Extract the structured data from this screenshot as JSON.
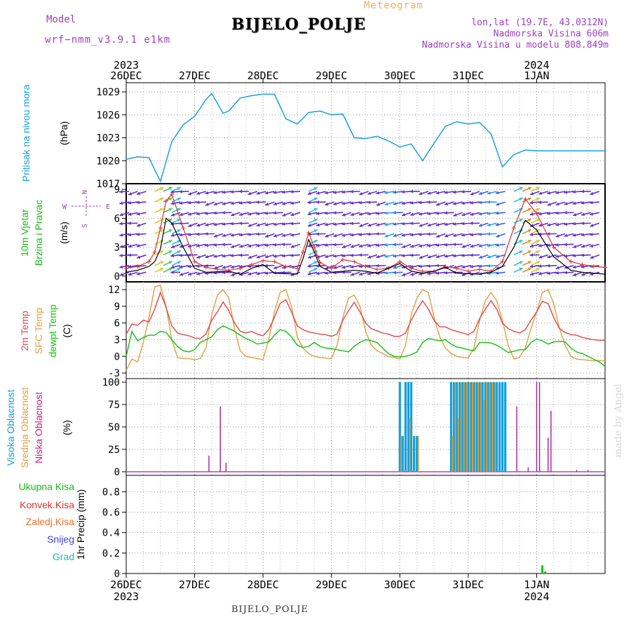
{
  "header": {
    "model_label": "Model",
    "model_name": "wrf−nmm_v3.9.1  e1km",
    "meteogram_label": "Meteogram",
    "station_title": "BIJELO_POLJE",
    "coords": "lon,lat (19.7E, 43.0312N)",
    "elevation": "Nadmorska Visina 606m",
    "model_elevation": "Nadmorska Visina u modelu 808.849m",
    "watermark": "made by Angel",
    "footer_station": "BIJELO_POLJE"
  },
  "colors": {
    "pressure": "#1aa0e0",
    "wind_speed": "#000000",
    "gust": "#e03030",
    "t2m": "#e04848",
    "sfc": "#e0a040",
    "dew": "#10c010",
    "high_cloud": "#10a0e0",
    "mid_cloud": "#e0a040",
    "low_cloud": "#a020a0",
    "total_precip": "#10c010",
    "label_purple": "#a040c0",
    "label_orange": "#f0b060"
  },
  "chart_data": [
    {
      "type": "line",
      "name": "pressure",
      "ylabel_name": "Pritisak na nivou mora",
      "ylabel_unit": "(hPa)",
      "yticks": [
        1017,
        1020,
        1023,
        1026,
        1029
      ],
      "ylim": [
        1017,
        1030.2
      ],
      "x_hours": [
        0,
        4,
        8,
        12,
        16,
        20,
        24,
        28,
        30,
        34,
        36,
        40,
        44,
        48,
        52,
        56,
        60,
        64,
        68,
        72,
        76,
        80,
        84,
        88,
        92,
        96,
        100,
        104,
        108,
        112,
        116,
        120,
        124,
        128,
        132,
        136,
        140,
        144,
        148,
        152,
        156,
        160,
        164,
        168
      ],
      "values": [
        1020.2,
        1020.5,
        1020.4,
        1017.3,
        1022.5,
        1024.7,
        1025.8,
        1028.0,
        1028.8,
        1026.2,
        1026.5,
        1028.2,
        1028.5,
        1028.7,
        1028.7,
        1025.5,
        1024.8,
        1026.3,
        1026.5,
        1026.0,
        1026.1,
        1023.0,
        1022.9,
        1023.2,
        1022.6,
        1021.8,
        1022.2,
        1020.0,
        1022.3,
        1024.5,
        1025.1,
        1024.8,
        1025.0,
        1023.5,
        1019.2,
        1020.8,
        1021.4,
        1021.3,
        1021.3,
        1021.3,
        1021.3,
        1021.3,
        1021.3,
        1021.3
      ]
    },
    {
      "type": "line",
      "name": "wind",
      "ylabel_name": "10m Vjetar",
      "ylabel_name2": "Brzina i Pravac",
      "ylabel_unit": "(m/s)",
      "compass": [
        "N",
        "S",
        "W",
        "E"
      ],
      "yticks": [
        0,
        3,
        6,
        9
      ],
      "ylim": [
        -0.6,
        9.6
      ],
      "speed_x_hours": [
        0,
        4,
        8,
        10,
        12,
        14,
        16,
        20,
        24,
        28,
        36,
        40,
        44,
        48,
        52,
        60,
        62,
        64,
        66,
        68,
        72,
        80,
        84,
        88,
        92,
        96,
        100,
        104,
        108,
        112,
        116,
        124,
        128,
        132,
        136,
        140,
        144,
        150,
        156,
        160,
        164,
        168
      ],
      "speed_values": [
        0.4,
        0.6,
        1.0,
        1.5,
        2.8,
        6.0,
        5.5,
        3.0,
        0.8,
        0.4,
        0.5,
        0.2,
        0.8,
        1.2,
        0.3,
        0.2,
        1.8,
        3.8,
        2.5,
        1.0,
        0.4,
        0.6,
        0.5,
        0.3,
        0.8,
        1.3,
        0.5,
        0.3,
        0.5,
        0.9,
        0.3,
        0.2,
        0.4,
        1.0,
        3.0,
        5.8,
        4.8,
        2.0,
        0.6,
        0.4,
        0.3,
        0.2
      ],
      "gust_x_hours": [
        0,
        4,
        8,
        10,
        12,
        14,
        16,
        20,
        24,
        28,
        32,
        36,
        40,
        44,
        48,
        52,
        56,
        60,
        62,
        64,
        66,
        68,
        72,
        76,
        80,
        84,
        88,
        92,
        96,
        100,
        104,
        108,
        112,
        116,
        120,
        124,
        128,
        132,
        136,
        140,
        144,
        150,
        156,
        160,
        164,
        168
      ],
      "gust_values": [
        0.8,
        1.0,
        1.5,
        2.5,
        5.0,
        7.8,
        8.5,
        5.0,
        1.5,
        0.9,
        0.7,
        0.6,
        0.8,
        1.2,
        1.6,
        1.5,
        1.0,
        0.8,
        2.5,
        4.5,
        3.0,
        1.4,
        0.8,
        1.7,
        1.5,
        1.0,
        0.7,
        0.8,
        1.5,
        0.8,
        0.5,
        0.5,
        1.0,
        0.8,
        0.5,
        0.7,
        0.5,
        1.5,
        5.0,
        8.0,
        6.5,
        3.0,
        1.5,
        1.2,
        1.0,
        0.9
      ],
      "arrow_rows": [
        0.4,
        1.1,
        2.2,
        3.3,
        4.4,
        5.5,
        6.6,
        7.7,
        8.8
      ],
      "arrow_step_hours": 3
    },
    {
      "type": "line",
      "name": "temperature",
      "ylabel_name": "2m Temp",
      "ylabel_name2": "SFC Temp",
      "ylabel_name3": "dewpt Temp",
      "ylabel_unit": "(C)",
      "yticks": [
        -3,
        0,
        3,
        6,
        9,
        12
      ],
      "ylim": [
        -4,
        13.4
      ],
      "x_hours": [
        0,
        2,
        4,
        6,
        8,
        10,
        12,
        14,
        16,
        18,
        20,
        22,
        24,
        26,
        28,
        30,
        32,
        34,
        36,
        38,
        40,
        42,
        44,
        46,
        48,
        50,
        52,
        54,
        56,
        58,
        60,
        62,
        64,
        66,
        68,
        70,
        72,
        74,
        76,
        78,
        80,
        82,
        84,
        86,
        88,
        90,
        92,
        94,
        96,
        98,
        100,
        102,
        104,
        106,
        108,
        110,
        112,
        114,
        116,
        118,
        120,
        122,
        124,
        126,
        128,
        130,
        132,
        134,
        136,
        138,
        140,
        142,
        144,
        146,
        148,
        150,
        152,
        154,
        156,
        158,
        160,
        162,
        164,
        166,
        168
      ],
      "t2m": [
        4.0,
        5.8,
        5.6,
        6.5,
        6.2,
        8.5,
        11.5,
        8.8,
        5.5,
        4.2,
        3.9,
        3.7,
        3.3,
        3.2,
        4.0,
        6.5,
        8.0,
        9.8,
        8.2,
        6.0,
        4.5,
        4.2,
        4.5,
        4.0,
        3.7,
        4.8,
        7.0,
        9.5,
        10.2,
        8.0,
        5.5,
        4.8,
        4.4,
        4.2,
        4.0,
        3.9,
        3.6,
        4.0,
        6.5,
        8.2,
        9.7,
        8.0,
        6.0,
        5.0,
        4.6,
        4.2,
        4.0,
        3.6,
        3.6,
        4.2,
        6.5,
        8.4,
        10.0,
        8.5,
        6.5,
        5.3,
        5.3,
        4.8,
        4.5,
        4.2,
        3.9,
        4.5,
        6.8,
        8.5,
        10.0,
        8.5,
        6.0,
        5.0,
        4.5,
        4.2,
        4.8,
        6.5,
        8.0,
        9.9,
        9.5,
        7.0,
        5.0,
        4.3,
        3.9,
        3.8,
        3.4,
        3.2,
        3.0,
        2.9,
        2.9
      ],
      "sfc": [
        -2.5,
        -0.5,
        -1.0,
        2.5,
        7.0,
        12.5,
        12.8,
        9.0,
        3.0,
        -0.2,
        -0.4,
        -0.4,
        -0.6,
        -0.4,
        1.5,
        7.5,
        11.0,
        12.0,
        10.5,
        5.0,
        1.0,
        0.0,
        -0.2,
        -0.4,
        -0.6,
        3.0,
        8.0,
        11.5,
        12.0,
        9.0,
        3.5,
        1.5,
        0.5,
        0.0,
        -0.2,
        -0.3,
        -0.4,
        2.0,
        7.0,
        10.5,
        11.0,
        9.0,
        4.5,
        2.0,
        1.0,
        0.5,
        0.0,
        -0.2,
        -0.5,
        2.0,
        7.5,
        10.5,
        12.0,
        11.5,
        7.0,
        3.5,
        1.5,
        0.5,
        0.0,
        -0.2,
        -0.3,
        1.5,
        6.5,
        10.0,
        11.5,
        10.0,
        6.5,
        2.0,
        -0.5,
        -0.2,
        1.5,
        5.0,
        8.0,
        11.5,
        12.0,
        9.5,
        5.0,
        2.0,
        0.0,
        -0.5,
        -0.6,
        -0.7,
        -0.8,
        -0.8,
        -0.8
      ],
      "dew": [
        0.0,
        4.5,
        2.8,
        3.4,
        3.8,
        3.8,
        4.5,
        4.3,
        3.0,
        1.8,
        1.0,
        0.8,
        1.2,
        2.5,
        3.0,
        3.5,
        4.8,
        5.5,
        5.0,
        4.5,
        3.8,
        3.2,
        2.8,
        2.2,
        2.4,
        2.6,
        3.8,
        4.8,
        4.5,
        3.5,
        2.0,
        1.6,
        1.8,
        2.5,
        1.8,
        1.5,
        1.4,
        1.2,
        1.0,
        0.8,
        1.8,
        2.5,
        3.0,
        2.8,
        2.5,
        1.5,
        0.5,
        0.0,
        -0.1,
        0.0,
        0.3,
        0.8,
        2.5,
        3.2,
        3.0,
        2.8,
        3.0,
        2.2,
        1.7,
        1.5,
        1.2,
        1.0,
        2.5,
        2.5,
        2.4,
        2.0,
        1.4,
        0.7,
        0.9,
        1.2,
        1.2,
        2.5,
        3.1,
        2.8,
        2.2,
        2.6,
        2.7,
        2.6,
        1.5,
        0.8,
        0.5,
        0.0,
        -0.5,
        -1.0,
        -1.8
      ]
    },
    {
      "type": "bar",
      "name": "cloud",
      "ylabel_name": "Visoka Oblacnost",
      "ylabel_name2": "Srednja Oblacnost",
      "ylabel_name3": "Niska Oblacnost",
      "ylabel_unit": "(%)",
      "yticks": [
        0,
        25,
        50,
        75,
        100
      ],
      "ylim": [
        -4,
        104
      ],
      "high_bars": [
        [
          96,
          100
        ],
        [
          97,
          40
        ],
        [
          98,
          100
        ],
        [
          99,
          100
        ],
        [
          100,
          100
        ],
        [
          101,
          40
        ],
        [
          102,
          40
        ],
        [
          114,
          100
        ],
        [
          115,
          100
        ],
        [
          116,
          100
        ],
        [
          117,
          100
        ],
        [
          118,
          100
        ],
        [
          119,
          100
        ],
        [
          120,
          100
        ],
        [
          121,
          100
        ],
        [
          122,
          100
        ],
        [
          123,
          100
        ],
        [
          124,
          100
        ],
        [
          125,
          100
        ],
        [
          126,
          100
        ],
        [
          127,
          100
        ],
        [
          128,
          100
        ],
        [
          129,
          100
        ],
        [
          130,
          100
        ],
        [
          131,
          100
        ],
        [
          132,
          100
        ],
        [
          133,
          100
        ]
      ],
      "mid_bars": [
        [
          96.5,
          40
        ],
        [
          99.5,
          60
        ],
        [
          102.5,
          40
        ],
        [
          114.5,
          40
        ],
        [
          115.5,
          100
        ],
        [
          116.5,
          60
        ],
        [
          117.5,
          100
        ],
        [
          118.5,
          100
        ],
        [
          119.5,
          100
        ],
        [
          120.5,
          100
        ],
        [
          121.5,
          100
        ],
        [
          122.5,
          100
        ],
        [
          123.5,
          100
        ],
        [
          124.5,
          100
        ],
        [
          125.5,
          80
        ],
        [
          126.5,
          100
        ],
        [
          127.5,
          100
        ],
        [
          128.5,
          100
        ],
        [
          129.5,
          100
        ]
      ],
      "low_bars": [
        [
          29,
          18
        ],
        [
          33,
          73
        ],
        [
          35,
          10
        ],
        [
          137,
          73
        ],
        [
          141,
          5
        ],
        [
          144,
          100
        ],
        [
          145,
          100
        ],
        [
          148,
          38
        ],
        [
          149,
          68
        ],
        [
          158,
          2
        ],
        [
          162,
          2
        ]
      ]
    },
    {
      "type": "bar",
      "name": "precip",
      "ylabel_name": "1hr Precip",
      "ylabel_unit": "(mm)",
      "legend": [
        "Ukupna Kisa",
        "Konvek.Kisa",
        "Zaledj.Kisa",
        "Snijeg",
        "Grad"
      ],
      "yticks": [
        0,
        0.2,
        0.4,
        0.6,
        0.8
      ],
      "ylim": [
        0,
        0.96
      ],
      "bars": [
        [
          146,
          0.08
        ],
        [
          147,
          0.02
        ]
      ]
    },
    {
      "type": "axis",
      "name": "time",
      "x_range_hours": [
        0,
        168
      ],
      "major_ticks": [
        {
          "h": 0,
          "label": "26DEC",
          "year": "2023"
        },
        {
          "h": 24,
          "label": "27DEC",
          "year": ""
        },
        {
          "h": 48,
          "label": "28DEC",
          "year": ""
        },
        {
          "h": 72,
          "label": "29DEC",
          "year": ""
        },
        {
          "h": 96,
          "label": "30DEC",
          "year": ""
        },
        {
          "h": 120,
          "label": "31DEC",
          "year": ""
        },
        {
          "h": 144,
          "label": "1JAN",
          "year": "2024"
        }
      ],
      "minor_step_hours": 6
    }
  ]
}
